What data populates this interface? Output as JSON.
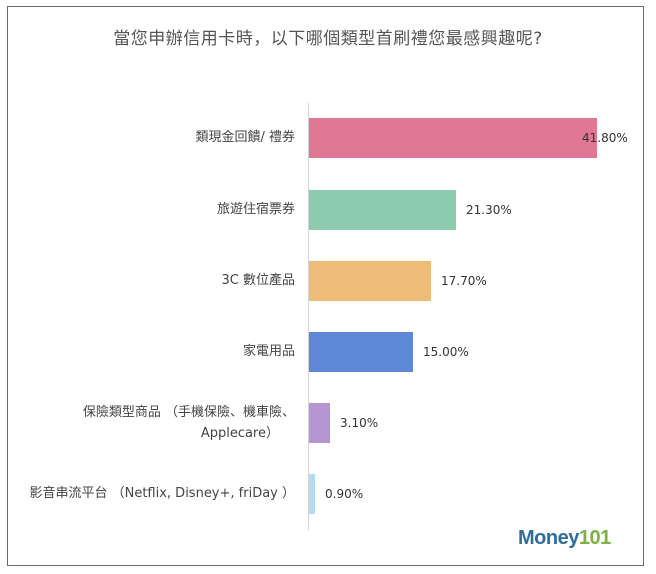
{
  "chart_data": {
    "type": "bar",
    "orientation": "horizontal",
    "title": "當您申辦信用卡時，以下哪個類型首刷禮您最感興趣呢?",
    "xlabel": "",
    "ylabel": "",
    "categories": [
      "類現金回饋/ 禮券",
      "旅遊住宿票券",
      "3C 數位產品",
      "家電用品",
      "保險類型商品 （手機保險、機車險、Applecare）",
      "影音串流平台 （Netflix, Disney+, friDay ）"
    ],
    "values": [
      41.8,
      21.3,
      17.7,
      15.0,
      3.1,
      0.9
    ],
    "value_labels": [
      "41.80%",
      "21.30%",
      "17.70%",
      "15.00%",
      "3.10%",
      "0.90%"
    ],
    "colors": [
      "#e07895",
      "#8dcbb1",
      "#efbb78",
      "#5f87d8",
      "#b595d2",
      "#b3dcf2"
    ],
    "unit": "%",
    "grid": false,
    "legend": "none"
  },
  "labels": {
    "line1": [
      "類現金回饋/ 禮券",
      "旅遊住宿票券",
      "3C 數位產品",
      "家電用品",
      "保險類型商品 （手機保險、機車險、",
      "影音串流平台 （Netflix, Disney+, friDay ）"
    ],
    "line2_item5": "Applecare）"
  },
  "branding": {
    "logo_part1": "Money",
    "logo_part2": "101"
  }
}
